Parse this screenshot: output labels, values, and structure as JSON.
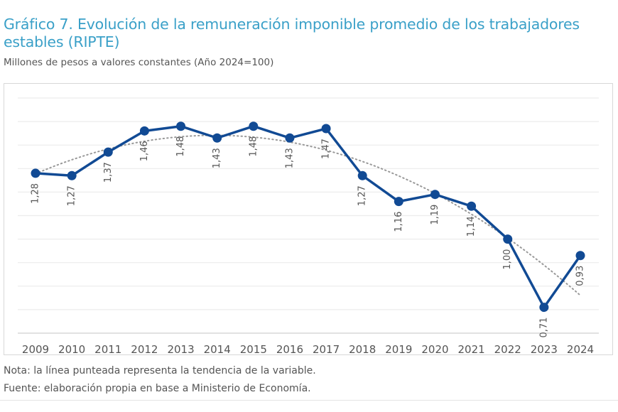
{
  "header": {
    "title": "Gráfico 7. Evolución de la remuneración imponible promedio de los trabajadores estables (RIPTE)",
    "subtitle": "Millones de pesos a valores constantes (Año 2024=100)"
  },
  "footer": {
    "note": "Nota: la línea punteada representa la tendencia de la variable.",
    "source": "Fuente: elaboración propia en base a Ministerio de Economía."
  },
  "chart_data": {
    "type": "line",
    "title": "Gráfico 7. Evolución de la remuneración imponible promedio de los trabajadores estables (RIPTE)",
    "ylabel": "Millones de pesos a valores constantes (Año 2024=100)",
    "categories": [
      "2009",
      "2010",
      "2011",
      "2012",
      "2013",
      "2014",
      "2015",
      "2016",
      "2017",
      "2018",
      "2019",
      "2020",
      "2021",
      "2022",
      "2023",
      "2024"
    ],
    "series": [
      {
        "values": [
          1.28,
          1.27,
          1.37,
          1.46,
          1.48,
          1.43,
          1.48,
          1.43,
          1.47,
          1.27,
          1.16,
          1.19,
          1.14,
          1.0,
          0.71,
          0.93
        ],
        "labels": [
          "1,28",
          "1,27",
          "1,37",
          "1,46",
          "1,48",
          "1,43",
          "1,48",
          "1,43",
          "1,47",
          "1,27",
          "1,16",
          "1,19",
          "1,14",
          "1,00",
          "0,71",
          "0,93"
        ],
        "color": "#114a94"
      }
    ],
    "trendline": {
      "style": "dotted",
      "color": "#999999",
      "kind": "polynomial"
    },
    "ylim": [
      0.6,
      1.6
    ],
    "grid": true,
    "y_axis_labels_shown": false,
    "legend": "none"
  }
}
